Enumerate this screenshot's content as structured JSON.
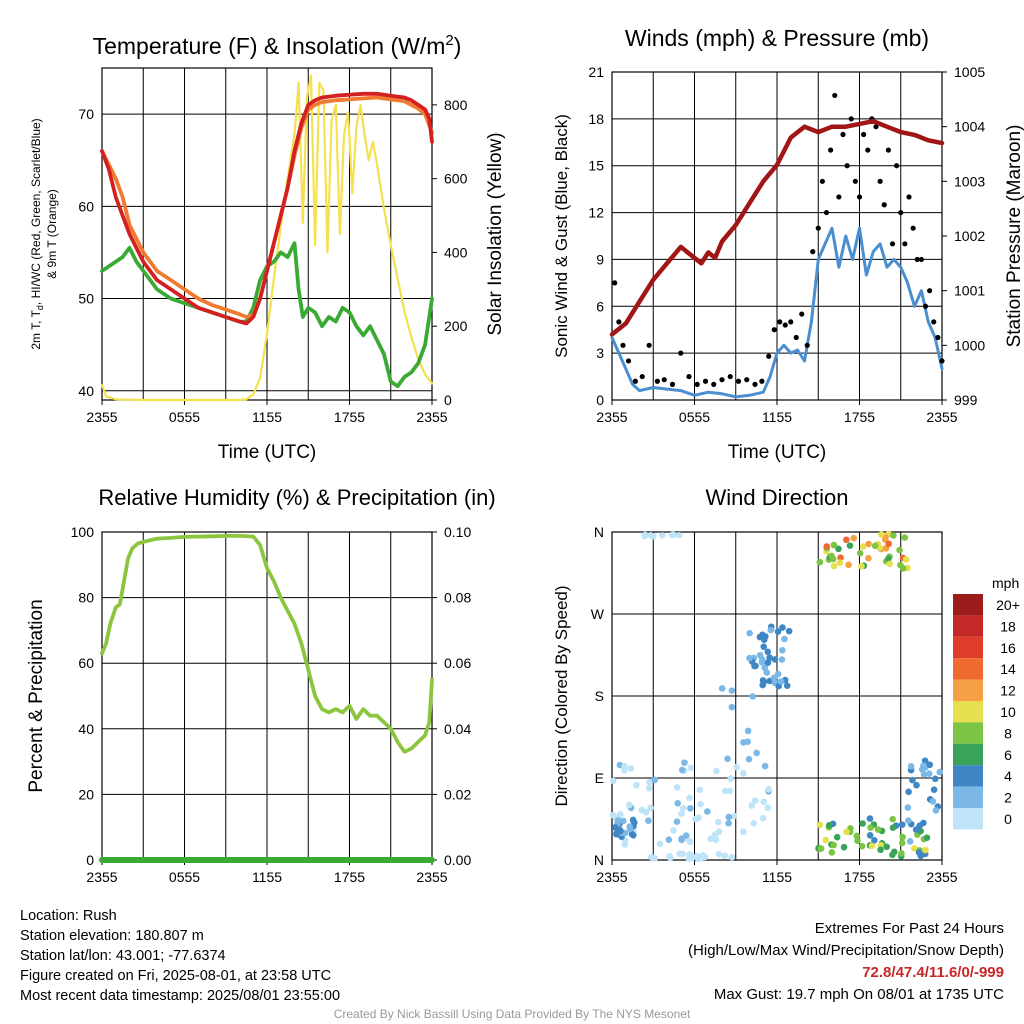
{
  "colors": {
    "temp_2m": "#d42020",
    "temp_9m": "#f07a30",
    "dewpoint": "#3aaa35",
    "insolation": "#f5e050",
    "wind": "#4a8fd0",
    "gust": "#000000",
    "pressure": "#a01515",
    "humidity": "#8cc63f",
    "precip": "#3aaa35"
  },
  "chart_data": [
    {
      "id": "temp",
      "type": "line",
      "title": "Temperature (F) & Insolation (W/m",
      "title_sup": "2",
      "title_end": ")",
      "xlabel": "Time (UTC)",
      "ylabel_line1": "2m T, T",
      "ylabel_sub": "d",
      "ylabel_rest": ", HI/WC (Red, Green, Scarlet/Blue)",
      "ylabel_line2": "& 9m T (Orange)",
      "y2label": "Solar Insolation (Yellow)",
      "x_ticks": [
        "2355",
        "0555",
        "1155",
        "1755",
        "2355"
      ],
      "x_range": [
        0,
        24
      ],
      "ylim": [
        39,
        75
      ],
      "y_ticks": [
        40,
        50,
        60,
        70
      ],
      "y2lim": [
        0,
        900
      ],
      "y2_ticks": [
        0,
        200,
        400,
        600,
        800
      ],
      "series": [
        {
          "key": "temp_2m",
          "x": [
            0,
            0.5,
            1,
            1.5,
            2,
            3,
            4,
            5,
            6,
            7,
            8,
            9,
            10,
            10.5,
            11,
            11.5,
            12,
            12.5,
            13,
            13.5,
            14,
            14.5,
            15,
            15.5,
            16,
            17,
            18,
            19,
            20,
            21,
            22,
            22.5,
            23,
            23.5,
            23.8,
            24
          ],
          "y": [
            66,
            64,
            61,
            59,
            57,
            54,
            52,
            51,
            50,
            49,
            48.5,
            48,
            47.5,
            47.3,
            48,
            50,
            53,
            56,
            59,
            62,
            66,
            69,
            71,
            71.5,
            71.8,
            72,
            72.1,
            72.2,
            72.2,
            72,
            71.8,
            71.5,
            71,
            70.5,
            69.5,
            67
          ]
        },
        {
          "key": "temp_9m",
          "x": [
            0,
            0.5,
            1,
            1.5,
            2,
            3,
            4,
            5,
            6,
            7,
            8,
            9,
            10,
            10.5,
            11,
            11.5,
            12,
            12.5,
            13,
            13.5,
            14,
            14.5,
            15,
            15.5,
            16,
            17,
            18,
            19,
            20,
            21,
            22,
            22.5,
            23,
            23.5,
            24
          ],
          "y": [
            66,
            64.5,
            63,
            61,
            58,
            55,
            53,
            52,
            51,
            50,
            49.3,
            48.8,
            48.3,
            48,
            48.2,
            50,
            53,
            56,
            59,
            62,
            65.5,
            68.5,
            70.5,
            71,
            71.3,
            71.5,
            71.6,
            71.7,
            71.8,
            71.6,
            71.4,
            71,
            70.6,
            70,
            68
          ]
        },
        {
          "key": "dewpoint",
          "x": [
            0,
            0.5,
            1,
            1.5,
            2,
            2.5,
            3,
            4,
            5,
            6,
            7,
            8,
            9,
            10,
            10.5,
            11,
            11.5,
            12,
            12.5,
            13,
            13.5,
            14,
            14.3,
            14.6,
            15,
            15.5,
            16,
            16.5,
            17,
            17.5,
            18,
            18.5,
            19,
            19.5,
            20,
            20.5,
            21,
            21.5,
            22,
            22.5,
            23,
            23.5,
            24
          ],
          "y": [
            53,
            53.5,
            54,
            54.5,
            55.5,
            54,
            53,
            51,
            50,
            49.5,
            49,
            48.5,
            48,
            47.5,
            47.5,
            49,
            52,
            53.5,
            54,
            55,
            54.5,
            56,
            51,
            48,
            49,
            48.5,
            47,
            48,
            47.5,
            49,
            48.5,
            47,
            46,
            47,
            45.5,
            44,
            41,
            40.5,
            41.5,
            42,
            43,
            45,
            50
          ]
        },
        {
          "key": "insolation",
          "axis": "y2",
          "x": [
            0,
            0.1,
            0.3,
            1,
            3,
            5,
            7,
            8,
            9,
            10,
            10.5,
            11,
            11.5,
            12,
            12.5,
            13,
            13.5,
            14,
            14.3,
            14.6,
            14.9,
            15.2,
            15.5,
            15.8,
            16.1,
            16.4,
            16.7,
            17,
            17.3,
            17.6,
            17.9,
            18.2,
            18.5,
            18.8,
            19.1,
            19.4,
            19.7,
            20,
            20.5,
            21,
            21.5,
            22,
            22.5,
            23,
            23.5,
            24
          ],
          "y": [
            40,
            30,
            10,
            2,
            0,
            0,
            0,
            0,
            0,
            0,
            2,
            15,
            60,
            180,
            330,
            470,
            600,
            720,
            860,
            480,
            820,
            880,
            420,
            860,
            840,
            400,
            760,
            800,
            450,
            720,
            780,
            560,
            740,
            800,
            720,
            650,
            700,
            640,
            520,
            420,
            330,
            240,
            170,
            110,
            70,
            45
          ]
        }
      ]
    },
    {
      "id": "wind",
      "type": "line",
      "title": "Winds (mph) & Pressure (mb)",
      "xlabel": "Time (UTC)",
      "ylabel": "Sonic Wind & Gust (Blue, Black)",
      "y2label": "Station Pressure (Maroon)",
      "x_ticks": [
        "2355",
        "0555",
        "1155",
        "1755",
        "2355"
      ],
      "x_range": [
        0,
        24
      ],
      "ylim": [
        0,
        21
      ],
      "y_ticks": [
        0,
        3,
        6,
        9,
        12,
        15,
        18,
        21
      ],
      "y2lim": [
        999,
        1005
      ],
      "y2_ticks": [
        999,
        1000,
        1001,
        1002,
        1003,
        1004,
        1005
      ],
      "series": [
        {
          "key": "pressure",
          "axis": "y2",
          "x": [
            0,
            1,
            2,
            3,
            4,
            5,
            6,
            6.5,
            7,
            7.5,
            8,
            9,
            10,
            11,
            12,
            13,
            14,
            15,
            16,
            17,
            18,
            19,
            20,
            21,
            22,
            23,
            24
          ],
          "y": [
            1000.2,
            1000.4,
            1000.8,
            1001.2,
            1001.5,
            1001.8,
            1001.6,
            1001.5,
            1001.7,
            1001.6,
            1001.9,
            1002.2,
            1002.6,
            1003.0,
            1003.3,
            1003.8,
            1004.0,
            1003.9,
            1004.0,
            1004.0,
            1004.05,
            1004.1,
            1004.0,
            1003.9,
            1003.85,
            1003.75,
            1003.7
          ]
        },
        {
          "key": "wind",
          "x": [
            0,
            0.5,
            1,
            1.5,
            2,
            3,
            4,
            5,
            6,
            7,
            8,
            9,
            10,
            11,
            11.5,
            12,
            12.5,
            13,
            13.5,
            14,
            14.5,
            15,
            15.5,
            16,
            16.5,
            17,
            17.5,
            18,
            18.5,
            19,
            19.5,
            20,
            20.5,
            21,
            21.5,
            22,
            22.5,
            23,
            23.5,
            24
          ],
          "y": [
            4,
            3,
            2,
            1,
            0.6,
            0.8,
            0.7,
            0.6,
            0.3,
            0.5,
            0.4,
            0.2,
            0.3,
            0.5,
            1.5,
            3,
            3.5,
            3,
            3.2,
            2.5,
            5,
            9,
            10,
            11,
            8.5,
            10.5,
            9,
            11,
            8,
            9.5,
            10,
            8.5,
            9,
            8.5,
            7.5,
            6,
            7,
            5,
            4,
            2
          ]
        },
        {
          "key": "gust",
          "type": "scatter",
          "x": [
            0.2,
            0.5,
            0.8,
            1.2,
            1.7,
            2.2,
            2.7,
            3.3,
            3.8,
            4.4,
            5,
            5.6,
            6.2,
            6.8,
            7.4,
            8,
            8.6,
            9.2,
            9.8,
            10.4,
            10.9,
            11.4,
            11.8,
            12.2,
            12.6,
            13,
            13.4,
            13.8,
            14.2,
            14.6,
            15,
            15.3,
            15.6,
            15.9,
            16.2,
            16.5,
            16.8,
            17.1,
            17.4,
            17.7,
            18,
            18.3,
            18.6,
            18.9,
            19.2,
            19.5,
            19.8,
            20.1,
            20.4,
            20.7,
            21,
            21.3,
            21.6,
            21.9,
            22.2,
            22.5,
            22.8,
            23.1,
            23.4,
            23.7,
            24
          ],
          "y": [
            7.5,
            5,
            3.5,
            2.5,
            1.2,
            1.5,
            3.5,
            1.2,
            1.3,
            1,
            3,
            1.5,
            1,
            1.2,
            1,
            1.3,
            1.5,
            1.2,
            1.3,
            1,
            1.2,
            2.8,
            4.5,
            5,
            4.8,
            5,
            4,
            5.5,
            3.5,
            9.5,
            11,
            14,
            12,
            16,
            19.5,
            13,
            17,
            15,
            18,
            14,
            13,
            17,
            16,
            18,
            17.5,
            14,
            12.5,
            16,
            10,
            15,
            12,
            10,
            13,
            11,
            9,
            9,
            6,
            7,
            5,
            4,
            2.5
          ]
        }
      ]
    },
    {
      "id": "rh",
      "type": "line",
      "title": "Relative Humidity (%) & Precipitation (in)",
      "xlabel": "",
      "ylabel": "Percent & Precipitation",
      "x_ticks": [
        "2355",
        "0555",
        "1155",
        "1755",
        "2355"
      ],
      "x_range": [
        0,
        24
      ],
      "ylim": [
        0,
        100
      ],
      "y_ticks": [
        0,
        20,
        40,
        60,
        80,
        100
      ],
      "y2lim": [
        0,
        0.1
      ],
      "y2_ticks": [
        "0.00",
        "0.02",
        "0.04",
        "0.06",
        "0.08",
        "0.10"
      ],
      "series": [
        {
          "key": "humidity",
          "x": [
            0,
            0.3,
            0.6,
            1,
            1.3,
            1.6,
            1.9,
            2.2,
            2.6,
            3,
            4,
            5,
            6,
            7,
            8,
            9,
            10,
            11,
            11.5,
            12,
            12.5,
            13,
            13.5,
            14,
            14.5,
            15,
            15.5,
            16,
            16.5,
            17,
            17.5,
            18,
            18.5,
            19,
            19.5,
            20,
            20.5,
            21,
            21.5,
            22,
            22.5,
            23,
            23.5,
            23.8,
            24
          ],
          "y": [
            63,
            66,
            72,
            77,
            78,
            85,
            92,
            95,
            96.5,
            97,
            98,
            98.2,
            98.5,
            98.6,
            98.7,
            98.8,
            98.8,
            98.6,
            96,
            89,
            85,
            80,
            76,
            72,
            66,
            58,
            50,
            46,
            45,
            46,
            45,
            47,
            43,
            46,
            44,
            44,
            42,
            40,
            36,
            33,
            34,
            36,
            38,
            42,
            55
          ]
        },
        {
          "key": "precip",
          "axis": "y2",
          "x": [
            0,
            24
          ],
          "y": [
            0,
            0
          ]
        }
      ]
    },
    {
      "id": "dir",
      "type": "scatter",
      "title": "Wind Direction",
      "ylabel": "Direction (Colored By Speed)",
      "x_ticks": [
        "2355",
        "0555",
        "1155",
        "1755",
        "2355"
      ],
      "x_range": [
        0,
        24
      ],
      "ylim": [
        0,
        360
      ],
      "y_tick_labels": [
        "N",
        "E",
        "S",
        "W",
        "N"
      ],
      "y_tick_values": [
        0,
        90,
        180,
        270,
        360
      ],
      "legend_title": "mph",
      "legend_labels": [
        "20+",
        "18",
        "16",
        "14",
        "12",
        "10",
        "8",
        "6",
        "4",
        "2",
        "0"
      ],
      "legend_colors": [
        "#9c1c1c",
        "#c62828",
        "#e03c2c",
        "#ef6a2e",
        "#f5a045",
        "#e6e050",
        "#7cc443",
        "#3aa35a",
        "#3f86c5",
        "#7cb8e6",
        "#bfe3f7"
      ]
    }
  ],
  "footer_left": [
    "Location: Rush",
    "Station elevation: 180.807 m",
    "Station lat/lon: 43.001; -77.6374",
    "Figure created on Fri, 2025-08-01, at 23:58 UTC",
    "Most recent data timestamp: 2025/08/01 23:55:00"
  ],
  "footer_right": {
    "line1": "Extremes For Past 24 Hours",
    "line2": "(High/Low/Max Wind/Precipitation/Snow Depth)",
    "highlight": "72.8/47.4/11.6/0/-999",
    "line4": "Max Gust: 19.7 mph On 08/01 at 1735 UTC"
  },
  "credit": "Created By Nick Bassill Using Data Provided By The NYS Mesonet"
}
